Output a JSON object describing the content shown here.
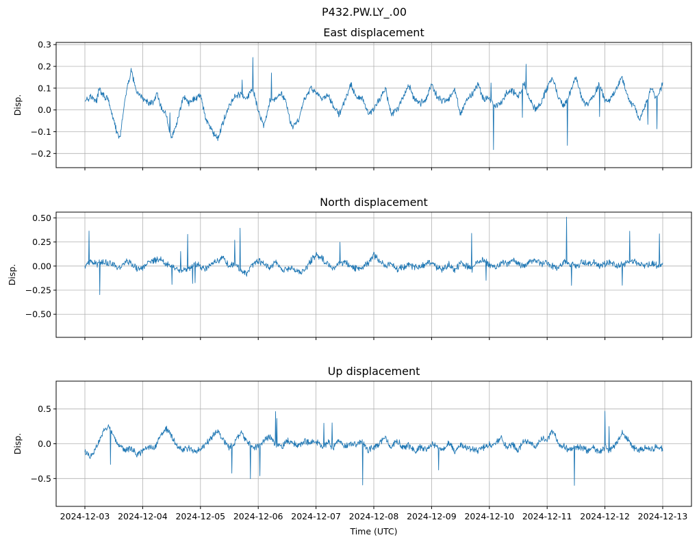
{
  "figure_title": "P432.PW.LY_.00",
  "chart_data": [
    {
      "type": "line",
      "title": "East displacement",
      "xlabel": "",
      "ylabel": "Disp.",
      "x_range": [
        "2024-12-03",
        "2024-12-13"
      ],
      "ylim": [
        -0.265,
        0.31
      ],
      "yticks": [
        -0.2,
        -0.1,
        0.0,
        0.1,
        0.2,
        0.3
      ],
      "ytick_labels": [
        "−0.2",
        "−0.1",
        "0.0",
        "0.1",
        "0.2",
        "0.3"
      ],
      "grid": true,
      "series": [
        {
          "name": "East",
          "color": "#1f77b4",
          "x": [
            0.0,
            0.1,
            0.2,
            0.25,
            0.3,
            0.4,
            0.5,
            0.55,
            0.6,
            0.7,
            0.8,
            0.9,
            1.0,
            1.1,
            1.2,
            1.25,
            1.3,
            1.4,
            1.5,
            1.6,
            1.7,
            1.8,
            1.9,
            2.0,
            2.1,
            2.2,
            2.3,
            2.4,
            2.5,
            2.6,
            2.7,
            2.8,
            2.9,
            3.0,
            3.1,
            3.2,
            3.3,
            3.4,
            3.5,
            3.55,
            3.6,
            3.7,
            3.8,
            3.9,
            4.0,
            4.1,
            4.2,
            4.3,
            4.4,
            4.5,
            4.6,
            4.7,
            4.8,
            4.9,
            5.0,
            5.1,
            5.2,
            5.3,
            5.4,
            5.5,
            5.6,
            5.7,
            5.8,
            5.9,
            6.0,
            6.1,
            6.2,
            6.3,
            6.4,
            6.5,
            6.6,
            6.7,
            6.8,
            6.9,
            7.0,
            7.1,
            7.2,
            7.3,
            7.4,
            7.5,
            7.6,
            7.7,
            7.8,
            7.9,
            8.0,
            8.1,
            8.2,
            8.3,
            8.4,
            8.5,
            8.6,
            8.7,
            8.8,
            8.9,
            9.0,
            9.1,
            9.2,
            9.3,
            9.4,
            9.5,
            9.6,
            9.7,
            9.8,
            9.9,
            10.0
          ],
          "values": [
            0.05,
            0.06,
            0.04,
            0.1,
            0.07,
            0.05,
            -0.05,
            -0.1,
            -0.14,
            0.06,
            0.18,
            0.08,
            0.05,
            0.03,
            0.04,
            0.08,
            0.02,
            -0.02,
            -0.13,
            -0.05,
            0.06,
            0.03,
            0.05,
            0.07,
            -0.05,
            -0.1,
            -0.13,
            -0.05,
            0.02,
            0.06,
            0.07,
            0.05,
            0.1,
            0.0,
            -0.08,
            0.04,
            0.05,
            0.08,
            0.02,
            -0.05,
            -0.08,
            -0.05,
            0.05,
            0.1,
            0.08,
            0.05,
            0.07,
            0.02,
            -0.02,
            0.04,
            0.12,
            0.05,
            0.06,
            -0.02,
            0.0,
            0.05,
            0.1,
            -0.02,
            0.0,
            0.05,
            0.12,
            0.05,
            0.03,
            0.05,
            0.12,
            0.06,
            0.04,
            0.05,
            0.1,
            -0.02,
            0.04,
            0.07,
            0.12,
            0.05,
            0.05,
            0.02,
            0.03,
            0.08,
            0.09,
            0.06,
            0.12,
            0.05,
            0.0,
            0.04,
            0.1,
            0.15,
            0.05,
            0.02,
            0.08,
            0.16,
            0.05,
            0.02,
            0.06,
            0.12,
            0.04,
            0.05,
            0.1,
            0.15,
            0.05,
            0.02,
            -0.04,
            0.02,
            0.1,
            0.05,
            0.12
          ]
        }
      ]
    },
    {
      "type": "line",
      "title": "North displacement",
      "xlabel": "",
      "ylabel": "Disp.",
      "x_range": [
        "2024-12-03",
        "2024-12-13"
      ],
      "ylim": [
        -0.74,
        0.56
      ],
      "yticks": [
        -0.5,
        -0.25,
        0.0,
        0.25,
        0.5
      ],
      "ytick_labels": [
        "−0.50",
        "−0.25",
        "0.00",
        "0.25",
        "0.50"
      ],
      "grid": true,
      "series": [
        {
          "name": "North",
          "color": "#1f77b4",
          "x": [
            0.0,
            0.1,
            0.2,
            0.3,
            0.4,
            0.5,
            0.6,
            0.7,
            0.8,
            0.9,
            1.0,
            1.1,
            1.2,
            1.3,
            1.4,
            1.5,
            1.6,
            1.7,
            1.8,
            1.9,
            2.0,
            2.1,
            2.2,
            2.3,
            2.4,
            2.5,
            2.6,
            2.7,
            2.8,
            2.9,
            3.0,
            3.1,
            3.2,
            3.3,
            3.4,
            3.5,
            3.6,
            3.7,
            3.8,
            3.9,
            4.0,
            4.1,
            4.2,
            4.3,
            4.4,
            4.5,
            4.6,
            4.7,
            4.8,
            4.9,
            5.0,
            5.1,
            5.2,
            5.3,
            5.4,
            5.5,
            5.6,
            5.7,
            5.8,
            5.9,
            6.0,
            6.1,
            6.2,
            6.3,
            6.4,
            6.5,
            6.6,
            6.7,
            6.8,
            6.9,
            7.0,
            7.1,
            7.2,
            7.3,
            7.4,
            7.5,
            7.6,
            7.7,
            7.8,
            7.9,
            8.0,
            8.1,
            8.2,
            8.3,
            8.4,
            8.5,
            8.6,
            8.7,
            8.8,
            8.9,
            9.0,
            9.1,
            9.2,
            9.3,
            9.4,
            9.5,
            9.6,
            9.7,
            9.8,
            9.9,
            10.0
          ],
          "values": [
            0.0,
            0.04,
            0.02,
            0.05,
            0.03,
            0.02,
            -0.02,
            0.05,
            0.02,
            -0.03,
            -0.02,
            0.04,
            0.06,
            0.08,
            0.03,
            -0.01,
            -0.03,
            -0.05,
            -0.02,
            0.02,
            0.0,
            -0.03,
            0.03,
            0.05,
            0.1,
            -0.02,
            0.04,
            -0.05,
            -0.08,
            0.02,
            0.05,
            0.03,
            -0.02,
            0.05,
            -0.03,
            -0.04,
            -0.01,
            -0.05,
            -0.06,
            0.05,
            0.12,
            0.08,
            0.02,
            -0.02,
            0.02,
            0.05,
            0.0,
            -0.03,
            -0.02,
            0.03,
            0.12,
            0.04,
            0.0,
            0.03,
            -0.03,
            -0.02,
            0.02,
            -0.01,
            0.0,
            0.02,
            0.05,
            -0.02,
            -0.03,
            0.02,
            -0.04,
            0.03,
            0.0,
            -0.03,
            0.05,
            0.06,
            0.02,
            -0.01,
            0.03,
            0.02,
            0.06,
            0.02,
            0.0,
            0.04,
            0.05,
            0.02,
            0.04,
            0.0,
            -0.03,
            0.05,
            0.02,
            -0.01,
            0.04,
            0.02,
            0.05,
            0.0,
            0.02,
            0.04,
            0.0,
            0.03,
            0.02,
            0.05,
            0.01,
            0.0,
            0.03,
            0.01,
            0.02
          ]
        }
      ]
    },
    {
      "type": "line",
      "title": "Up displacement",
      "xlabel": "Time (UTC)",
      "ylabel": "Disp.",
      "x_range": [
        "2024-12-03",
        "2024-12-13"
      ],
      "ylim": [
        -0.9,
        0.9
      ],
      "yticks": [
        -0.5,
        0.0,
        0.5
      ],
      "ytick_labels": [
        "−0.5",
        "0.0",
        "0.5"
      ],
      "xtick_labels": [
        "2024-12-03",
        "2024-12-04",
        "2024-12-05",
        "2024-12-06",
        "2024-12-07",
        "2024-12-08",
        "2024-12-09",
        "2024-12-10",
        "2024-12-11",
        "2024-12-12",
        "2024-12-13"
      ],
      "grid": true,
      "series": [
        {
          "name": "Up",
          "color": "#1f77b4",
          "x": [
            0.0,
            0.1,
            0.2,
            0.3,
            0.4,
            0.5,
            0.6,
            0.7,
            0.8,
            0.9,
            1.0,
            1.1,
            1.2,
            1.3,
            1.4,
            1.5,
            1.6,
            1.7,
            1.8,
            1.9,
            2.0,
            2.1,
            2.2,
            2.3,
            2.4,
            2.5,
            2.6,
            2.7,
            2.8,
            2.9,
            3.0,
            3.1,
            3.2,
            3.3,
            3.4,
            3.5,
            3.6,
            3.7,
            3.8,
            3.9,
            4.0,
            4.1,
            4.2,
            4.3,
            4.4,
            4.5,
            4.6,
            4.7,
            4.8,
            4.9,
            5.0,
            5.1,
            5.2,
            5.3,
            5.4,
            5.5,
            5.6,
            5.7,
            5.8,
            5.9,
            6.0,
            6.1,
            6.2,
            6.3,
            6.4,
            6.5,
            6.6,
            6.7,
            6.8,
            6.9,
            7.0,
            7.1,
            7.2,
            7.3,
            7.4,
            7.5,
            7.6,
            7.7,
            7.8,
            7.9,
            8.0,
            8.1,
            8.2,
            8.3,
            8.4,
            8.5,
            8.6,
            8.7,
            8.8,
            8.9,
            9.0,
            9.1,
            9.2,
            9.3,
            9.4,
            9.5,
            9.6,
            9.7,
            9.8,
            9.9,
            10.0
          ],
          "values": [
            -0.12,
            -0.18,
            -0.05,
            0.15,
            0.25,
            0.1,
            -0.05,
            -0.1,
            -0.05,
            -0.15,
            -0.1,
            -0.05,
            -0.08,
            0.1,
            0.22,
            0.1,
            -0.05,
            -0.1,
            -0.05,
            -0.12,
            -0.08,
            0.0,
            0.1,
            0.18,
            0.05,
            -0.05,
            0.02,
            0.15,
            0.05,
            -0.05,
            -0.05,
            0.05,
            0.12,
            0.0,
            -0.05,
            0.05,
            0.0,
            -0.02,
            0.05,
            0.0,
            0.05,
            -0.05,
            0.02,
            -0.05,
            0.05,
            -0.03,
            0.0,
            -0.02,
            0.05,
            -0.1,
            -0.05,
            0.0,
            0.1,
            -0.05,
            0.05,
            -0.05,
            -0.02,
            -0.1,
            -0.05,
            -0.08,
            0.0,
            -0.05,
            -0.08,
            0.02,
            -0.1,
            -0.02,
            -0.05,
            -0.08,
            -0.1,
            -0.05,
            -0.02,
            0.0,
            0.08,
            -0.05,
            0.0,
            -0.1,
            0.05,
            0.0,
            -0.05,
            0.08,
            0.05,
            0.2,
            0.0,
            -0.05,
            -0.1,
            -0.05,
            -0.05,
            -0.1,
            -0.05,
            -0.12,
            -0.05,
            -0.1,
            0.0,
            0.15,
            0.05,
            -0.05,
            -0.1,
            -0.05,
            -0.08,
            -0.05,
            -0.08
          ]
        }
      ]
    }
  ]
}
